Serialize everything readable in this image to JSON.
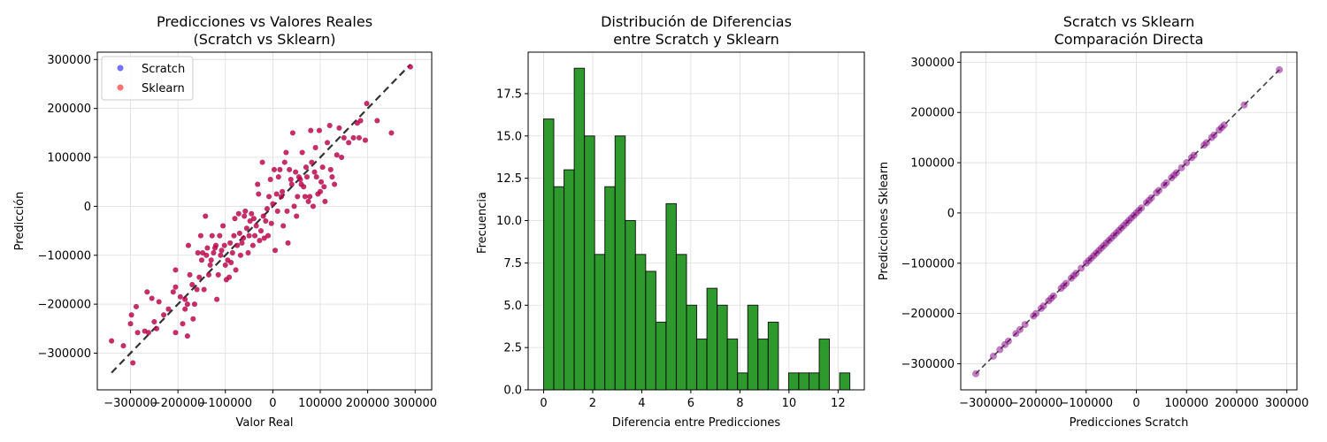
{
  "colors": {
    "scratch": "#0000ff",
    "sklearn": "#ff0000",
    "overlap": "#cc1a4d",
    "hist": "#2e9a2e",
    "purple": "#800080",
    "grid": "#dddddd",
    "refline": "#000000"
  },
  "chart_data": [
    {
      "type": "scatter",
      "title": [
        "Predicciones vs Valores Reales",
        "(Scratch vs Sklearn)"
      ],
      "xlabel": "Valor Real",
      "ylabel": "Predicción",
      "xlim": [
        -370000,
        335000
      ],
      "ylim": [
        -375000,
        315000
      ],
      "xticks": [
        -300000,
        -200000,
        -100000,
        0,
        100000,
        200000,
        300000
      ],
      "xtick_labels": [
        "−300000",
        "−200000",
        "−100000",
        "0",
        "100000",
        "200000",
        "300000"
      ],
      "yticks": [
        -300000,
        -200000,
        -100000,
        0,
        100000,
        200000,
        300000
      ],
      "ytick_labels": [
        "−300000",
        "−200000",
        "−100000",
        "0",
        "100000",
        "200000",
        "300000"
      ],
      "grid": true,
      "legend": {
        "placement": "upper-left",
        "entries": [
          "Scratch",
          "Sklearn"
        ]
      },
      "reference_line": {
        "from": [
          -340000,
          -340000
        ],
        "to": [
          290000,
          290000
        ]
      },
      "series": [
        {
          "name": "Scratch",
          "points": []
        },
        {
          "name": "Sklearn",
          "points": []
        }
      ],
      "points": [
        [
          -340000,
          -275000
        ],
        [
          -315000,
          -285000
        ],
        [
          -300000,
          -240000
        ],
        [
          -298000,
          -222000
        ],
        [
          -295000,
          -320000
        ],
        [
          -288000,
          -205000
        ],
        [
          -285000,
          -258000
        ],
        [
          -270000,
          -255000
        ],
        [
          -265000,
          -175000
        ],
        [
          -262000,
          -258000
        ],
        [
          -255000,
          -188000
        ],
        [
          -250000,
          -236000
        ],
        [
          -245000,
          -250000
        ],
        [
          -240000,
          -195000
        ],
        [
          -230000,
          -222000
        ],
        [
          -220000,
          -210000
        ],
        [
          -210000,
          -175000
        ],
        [
          -205000,
          -165000
        ],
        [
          -205000,
          -130000
        ],
        [
          -205000,
          -258000
        ],
        [
          -195000,
          -185000
        ],
        [
          -190000,
          -240000
        ],
        [
          -185000,
          -190000
        ],
        [
          -185000,
          -210000
        ],
        [
          -180000,
          -265000
        ],
        [
          -180000,
          -200000
        ],
        [
          -178000,
          -80000
        ],
        [
          -175000,
          -140000
        ],
        [
          -170000,
          -160000
        ],
        [
          -168000,
          -230000
        ],
        [
          -165000,
          -200000
        ],
        [
          -160000,
          -170000
        ],
        [
          -158000,
          -95000
        ],
        [
          -155000,
          -145000
        ],
        [
          -152000,
          -60000
        ],
        [
          -150000,
          -110000
        ],
        [
          -148000,
          -95000
        ],
        [
          -145000,
          -170000
        ],
        [
          -142000,
          -20000
        ],
        [
          -140000,
          -100000
        ],
        [
          -138000,
          -85000
        ],
        [
          -135000,
          -140000
        ],
        [
          -132000,
          -120000
        ],
        [
          -130000,
          -110000
        ],
        [
          -128000,
          -60000
        ],
        [
          -125000,
          -95000
        ],
        [
          -122000,
          -85000
        ],
        [
          -120000,
          -80000
        ],
        [
          -118000,
          -190000
        ],
        [
          -115000,
          -140000
        ],
        [
          -112000,
          -60000
        ],
        [
          -110000,
          -100000
        ],
        [
          -108000,
          -90000
        ],
        [
          -105000,
          -40000
        ],
        [
          -102000,
          -80000
        ],
        [
          -100000,
          -120000
        ],
        [
          -98000,
          -150000
        ],
        [
          -95000,
          -110000
        ],
        [
          -92000,
          -145000
        ],
        [
          -90000,
          -75000
        ],
        [
          -88000,
          -115000
        ],
        [
          -85000,
          -95000
        ],
        [
          -82000,
          -60000
        ],
        [
          -80000,
          -25000
        ],
        [
          -78000,
          -130000
        ],
        [
          -75000,
          -80000
        ],
        [
          -72000,
          -15000
        ],
        [
          -70000,
          -55000
        ],
        [
          -68000,
          -100000
        ],
        [
          -65000,
          -75000
        ],
        [
          -62000,
          -65000
        ],
        [
          -60000,
          -20000
        ],
        [
          -58000,
          -10000
        ],
        [
          -55000,
          -45000
        ],
        [
          -52000,
          -95000
        ],
        [
          -50000,
          -60000
        ],
        [
          -48000,
          -30000
        ],
        [
          -45000,
          -15000
        ],
        [
          -42000,
          -80000
        ],
        [
          -40000,
          -25000
        ],
        [
          -38000,
          -60000
        ],
        [
          -35000,
          -40000
        ],
        [
          -32000,
          45000
        ],
        [
          -30000,
          25000
        ],
        [
          -28000,
          -70000
        ],
        [
          -25000,
          -50000
        ],
        [
          -22000,
          90000
        ],
        [
          -20000,
          -20000
        ],
        [
          -18000,
          -65000
        ],
        [
          -15000,
          -30000
        ],
        [
          -12000,
          -5000
        ],
        [
          -10000,
          -60000
        ],
        [
          -8000,
          20000
        ],
        [
          -5000,
          55000
        ],
        [
          -3000,
          -35000
        ],
        [
          0,
          5000
        ],
        [
          3000,
          75000
        ],
        [
          5000,
          -90000
        ],
        [
          8000,
          25000
        ],
        [
          10000,
          -10000
        ],
        [
          12000,
          60000
        ],
        [
          15000,
          75000
        ],
        [
          18000,
          20000
        ],
        [
          20000,
          30000
        ],
        [
          22000,
          -40000
        ],
        [
          25000,
          90000
        ],
        [
          28000,
          110000
        ],
        [
          30000,
          -10000
        ],
        [
          32000,
          -75000
        ],
        [
          35000,
          75000
        ],
        [
          38000,
          55000
        ],
        [
          40000,
          45000
        ],
        [
          42000,
          150000
        ],
        [
          45000,
          0
        ],
        [
          48000,
          70000
        ],
        [
          50000,
          -20000
        ],
        [
          52000,
          20000
        ],
        [
          55000,
          60000
        ],
        [
          58000,
          55000
        ],
        [
          60000,
          45000
        ],
        [
          62000,
          110000
        ],
        [
          65000,
          40000
        ],
        [
          68000,
          20000
        ],
        [
          70000,
          80000
        ],
        [
          72000,
          60000
        ],
        [
          75000,
          10000
        ],
        [
          78000,
          20000
        ],
        [
          80000,
          155000
        ],
        [
          82000,
          90000
        ],
        [
          85000,
          0
        ],
        [
          88000,
          70000
        ],
        [
          90000,
          120000
        ],
        [
          92000,
          60000
        ],
        [
          95000,
          25000
        ],
        [
          98000,
          155000
        ],
        [
          100000,
          30000
        ],
        [
          102000,
          50000
        ],
        [
          105000,
          80000
        ],
        [
          108000,
          40000
        ],
        [
          110000,
          10000
        ],
        [
          115000,
          130000
        ],
        [
          120000,
          165000
        ],
        [
          122000,
          75000
        ],
        [
          125000,
          60000
        ],
        [
          130000,
          45000
        ],
        [
          135000,
          105000
        ],
        [
          140000,
          160000
        ],
        [
          145000,
          100000
        ],
        [
          150000,
          140000
        ],
        [
          160000,
          130000
        ],
        [
          170000,
          140000
        ],
        [
          178000,
          170000
        ],
        [
          182000,
          140000
        ],
        [
          185000,
          175000
        ],
        [
          195000,
          135000
        ],
        [
          198000,
          210000
        ],
        [
          220000,
          175000
        ],
        [
          250000,
          150000
        ],
        [
          290000,
          285000
        ]
      ]
    },
    {
      "type": "bar",
      "title": [
        "Distribución de Diferencias",
        "entre Scratch y Sklearn"
      ],
      "xlabel": "Diferencia entre Predicciones",
      "ylabel": "Frecuencia",
      "xlim": [
        -0.63,
        13.07
      ],
      "ylim": [
        0,
        19.95
      ],
      "xticks": [
        0,
        2,
        4,
        6,
        8,
        10,
        12
      ],
      "xtick_labels": [
        "0",
        "2",
        "4",
        "6",
        "8",
        "10",
        "12"
      ],
      "yticks": [
        0,
        2.5,
        5,
        7.5,
        10,
        12.5,
        15,
        17.5
      ],
      "ytick_labels": [
        "0.0",
        "2.5",
        "5.0",
        "7.5",
        "10.0",
        "12.5",
        "15.0",
        "17.5"
      ],
      "grid": true,
      "bin_start": 0.0,
      "bin_width": 0.416,
      "values": [
        16,
        12,
        13,
        19,
        15,
        8,
        12,
        15,
        10,
        8,
        7,
        4,
        11,
        8,
        5,
        3,
        6,
        5,
        3,
        1,
        5,
        3,
        4,
        0,
        1,
        1,
        1,
        3,
        0,
        1
      ]
    },
    {
      "type": "scatter",
      "title": [
        "Scratch vs Sklearn",
        "Comparación Directa"
      ],
      "xlabel": "Predicciones Scratch",
      "ylabel": "Predicciones Sklearn",
      "xlim": [
        -350000,
        320000
      ],
      "ylim": [
        -352000,
        320000
      ],
      "xticks": [
        -300000,
        -200000,
        -100000,
        0,
        100000,
        200000,
        300000
      ],
      "xtick_labels": [
        "−300000",
        "−200000",
        "−100000",
        "0",
        "100000",
        "200000",
        "300000"
      ],
      "yticks": [
        -300000,
        -200000,
        -100000,
        0,
        100000,
        200000,
        300000
      ],
      "ytick_labels": [
        "−300000",
        "−200000",
        "−100000",
        "0",
        "100000",
        "200000",
        "300000"
      ],
      "grid": true,
      "reference_line": {
        "from": [
          -320000,
          -320000
        ],
        "to": [
          285000,
          285000
        ]
      },
      "points": [
        [
          -320000,
          -320000
        ],
        [
          -285000,
          -285000
        ],
        [
          -272000,
          -272000
        ],
        [
          -262000,
          -262000
        ],
        [
          -255000,
          -255000
        ],
        [
          -240000,
          -240000
        ],
        [
          -232000,
          -232000
        ],
        [
          -222000,
          -222000
        ],
        [
          -205000,
          -205000
        ],
        [
          -200000,
          -200000
        ],
        [
          -190000,
          -190000
        ],
        [
          -185000,
          -185000
        ],
        [
          -175000,
          -175000
        ],
        [
          -170000,
          -170000
        ],
        [
          -165000,
          -165000
        ],
        [
          -150000,
          -150000
        ],
        [
          -145000,
          -145000
        ],
        [
          -140000,
          -140000
        ],
        [
          -130000,
          -130000
        ],
        [
          -125000,
          -125000
        ],
        [
          -120000,
          -120000
        ],
        [
          -110000,
          -110000
        ],
        [
          -100000,
          -100000
        ],
        [
          -95000,
          -95000
        ],
        [
          -90000,
          -90000
        ],
        [
          -85000,
          -85000
        ],
        [
          -80000,
          -80000
        ],
        [
          -75000,
          -75000
        ],
        [
          -70000,
          -70000
        ],
        [
          -65000,
          -65000
        ],
        [
          -60000,
          -60000
        ],
        [
          -55000,
          -55000
        ],
        [
          -50000,
          -50000
        ],
        [
          -45000,
          -45000
        ],
        [
          -40000,
          -40000
        ],
        [
          -35000,
          -35000
        ],
        [
          -30000,
          -30000
        ],
        [
          -25000,
          -25000
        ],
        [
          -20000,
          -20000
        ],
        [
          -15000,
          -15000
        ],
        [
          -10000,
          -10000
        ],
        [
          -5000,
          -5000
        ],
        [
          0,
          0
        ],
        [
          5000,
          5000
        ],
        [
          10000,
          10000
        ],
        [
          20000,
          20000
        ],
        [
          25000,
          25000
        ],
        [
          30000,
          30000
        ],
        [
          40000,
          40000
        ],
        [
          45000,
          45000
        ],
        [
          55000,
          55000
        ],
        [
          60000,
          60000
        ],
        [
          70000,
          70000
        ],
        [
          75000,
          75000
        ],
        [
          80000,
          80000
        ],
        [
          90000,
          90000
        ],
        [
          100000,
          100000
        ],
        [
          110000,
          110000
        ],
        [
          115000,
          115000
        ],
        [
          135000,
          135000
        ],
        [
          140000,
          140000
        ],
        [
          150000,
          150000
        ],
        [
          155000,
          155000
        ],
        [
          165000,
          165000
        ],
        [
          170000,
          170000
        ],
        [
          175000,
          175000
        ],
        [
          215000,
          215000
        ],
        [
          285000,
          285000
        ]
      ]
    }
  ]
}
